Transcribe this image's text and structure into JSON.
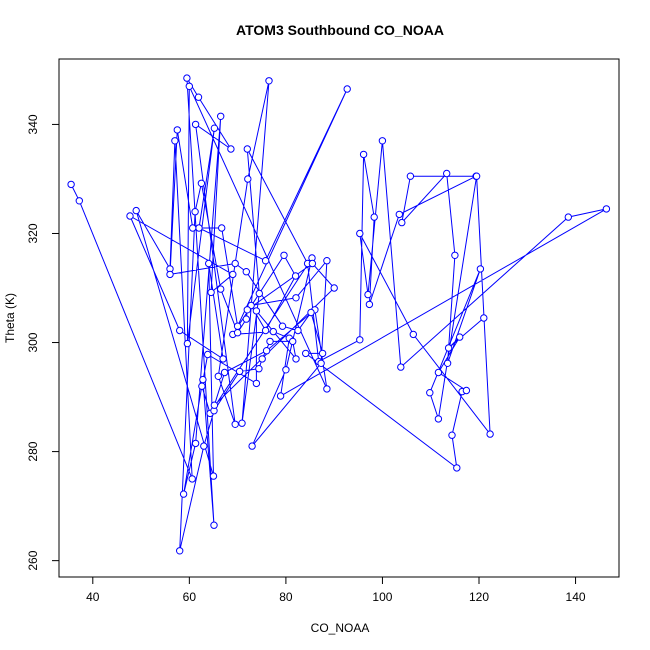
{
  "chart_data": {
    "type": "line",
    "title": "ATOM3 Southbound CO_NOAA",
    "xlabel": "CO_NOAA",
    "ylabel": "Theta (K)",
    "xlim": [
      33,
      149
    ],
    "ylim": [
      257,
      352
    ],
    "xticks": [
      40,
      60,
      80,
      100,
      120,
      140
    ],
    "yticks": [
      260,
      280,
      300,
      320,
      340
    ],
    "grid": false,
    "marker": "open-circle",
    "colors": {
      "series": "#0000ff",
      "frame": "#000000"
    },
    "series": [
      {
        "x": [
          35.5,
          37.2,
          60.6,
          57.0,
          56.0,
          49.0,
          65.0,
          64.0,
          67.0,
          58.0,
          47.7,
          69.0,
          64.5,
          66.5,
          61.3,
          58.8,
          62.8,
          65.1,
          59.5,
          61.9,
          68.6,
          61.3,
          69.5,
          66.0,
          72.1,
          76.5,
          70.9,
          74.5,
          72.0,
          84.5,
          86.8,
          95.3,
          96.1,
          98.3,
          97.3,
          103.5,
          119.4,
          105.8,
          104.0,
          113.3,
          115.0,
          113.5,
          120.3,
          109.8,
          111.6,
          119.5,
          122.3,
          106.4,
          95.3,
          97.0,
          100.0,
          103.8,
          138.5,
          146.4,
          78.9,
          80.7,
          77.4,
          69.0,
          79.6,
          82.0,
          75.8,
          72.8,
          82.1,
          88.5,
          87.3,
          73.0,
          80.0,
          85.4,
          64.3,
          62.6,
          63.8,
          73.9,
          73.9,
          82.1,
          81.4,
          76.7,
          75.1,
          74.4,
          70.4,
          65.1,
          63.0,
          58.0,
          61.2,
          62.5,
          66.5,
          70.0,
          71.8,
          72.0,
          85.5,
          90.0,
          65.2,
          67.3,
          76.0,
          86.0,
          88.5,
          60.0,
          59.6,
          65.2,
          62.0,
          75.8,
          92.7,
          70.0,
          66.7,
          60.7,
          57.5,
          56.0,
          69.5,
          71.8,
          79.3,
          82.5,
          85.2,
          87.6,
          84.1,
          115.4,
          114.4,
          116.5,
          117.4,
          111.6,
          116.0,
          113.7,
          121.0
        ],
        "y": [
          329.0,
          326.0,
          275.0,
          337.0,
          313.5,
          324.2,
          275.5,
          314.5,
          297.0,
          302.2,
          323.2,
          312.5,
          309.2,
          341.5,
          281.5,
          272.2,
          293.2,
          266.5,
          348.5,
          345.0,
          335.5,
          340.0,
          285.0,
          293.8,
          330.0,
          348.0,
          285.2,
          309.0,
          335.5,
          314.5,
          296.5,
          300.5,
          334.5,
          323.0,
          307.0,
          323.5,
          330.5,
          330.5,
          322.0,
          331.0,
          316.0,
          296.2,
          313.5,
          290.8,
          286.0,
          330.5,
          283.2,
          301.5,
          320.0,
          308.8,
          337.0,
          295.5,
          323.0,
          324.5,
          290.2,
          300.8,
          302.0,
          301.5,
          316.0,
          312.2,
          302.2,
          306.8,
          308.2,
          315.0,
          296.2,
          281.0,
          295.0,
          315.5,
          287.0,
          292.0,
          297.8,
          292.5,
          305.8,
          297.0,
          300.2,
          300.2,
          297.0,
          295.2,
          294.7,
          287.5,
          281.0,
          261.8,
          324.0,
          329.2,
          309.8,
          301.8,
          304.3,
          306.0,
          314.5,
          310.0,
          288.5,
          294.5,
          298.5,
          306.0,
          291.5,
          347.0,
          299.8,
          339.3,
          321.0,
          315.0,
          346.5,
          303.0,
          321.0,
          321.0,
          339.0,
          312.5,
          314.5,
          313.0,
          303.0,
          302.2,
          305.5,
          298.0,
          298.0,
          277.0,
          283.0,
          291.0,
          291.2,
          294.5,
          301.0,
          299.0,
          304.5
        ]
      }
    ]
  }
}
